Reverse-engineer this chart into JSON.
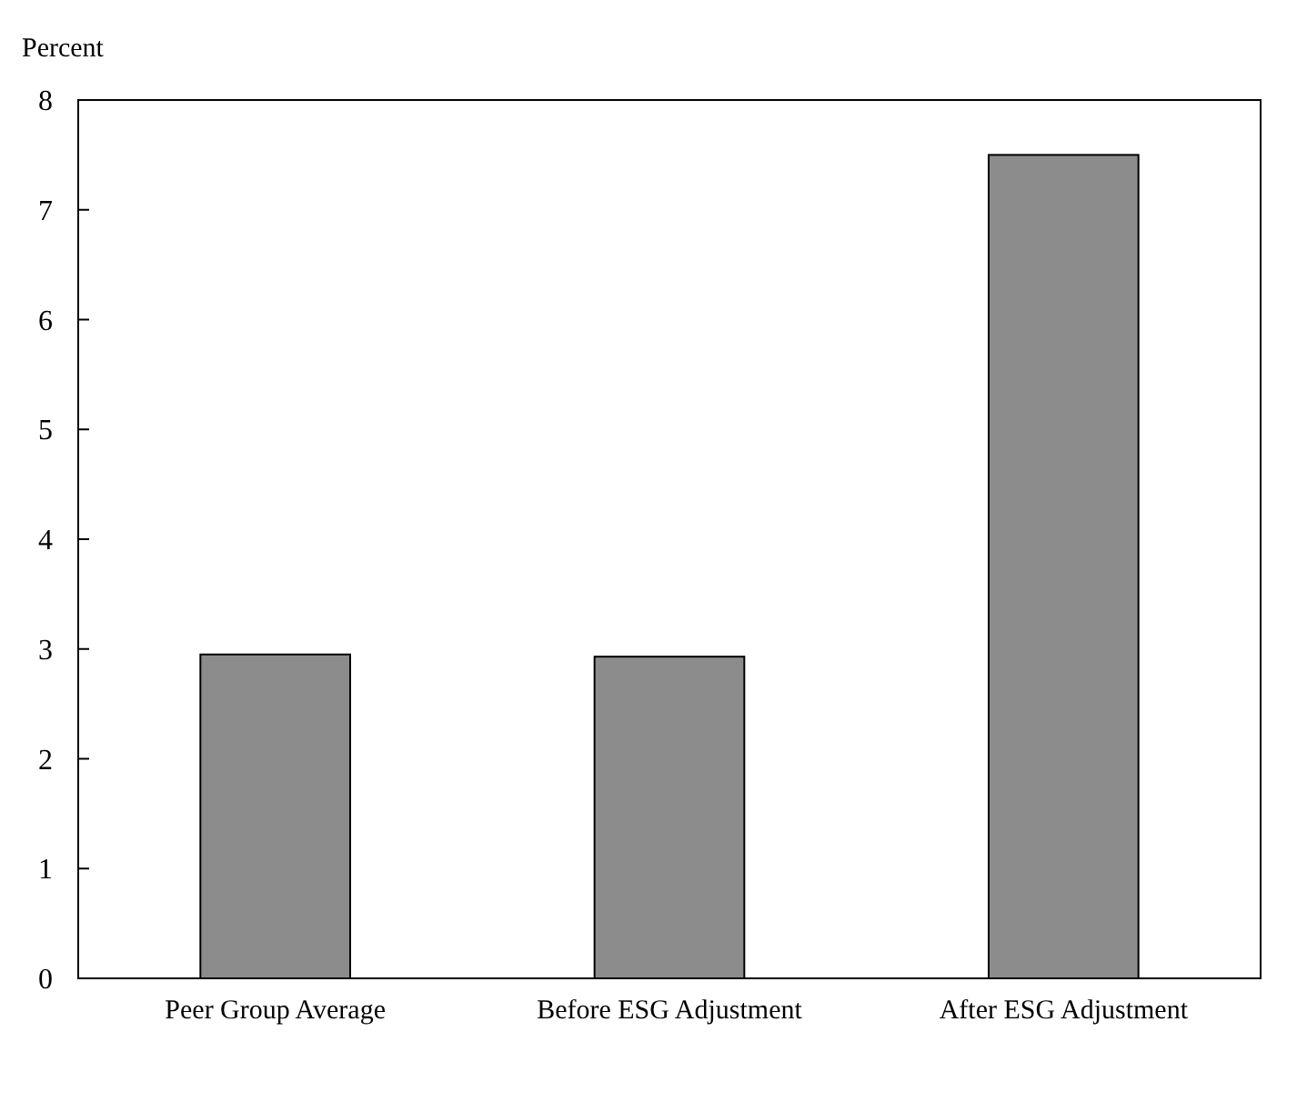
{
  "chart_data": {
    "type": "bar",
    "ylabel": "Percent",
    "categories": [
      "Peer Group Average",
      "Before ESG Adjustment",
      "After ESG Adjustment"
    ],
    "values": [
      2.95,
      2.93,
      7.5
    ],
    "color": "#8c8c8c",
    "ylim": [
      0,
      8
    ],
    "yticks": [
      0,
      1,
      2,
      3,
      4,
      5,
      6,
      7,
      8
    ],
    "grid": false
  }
}
